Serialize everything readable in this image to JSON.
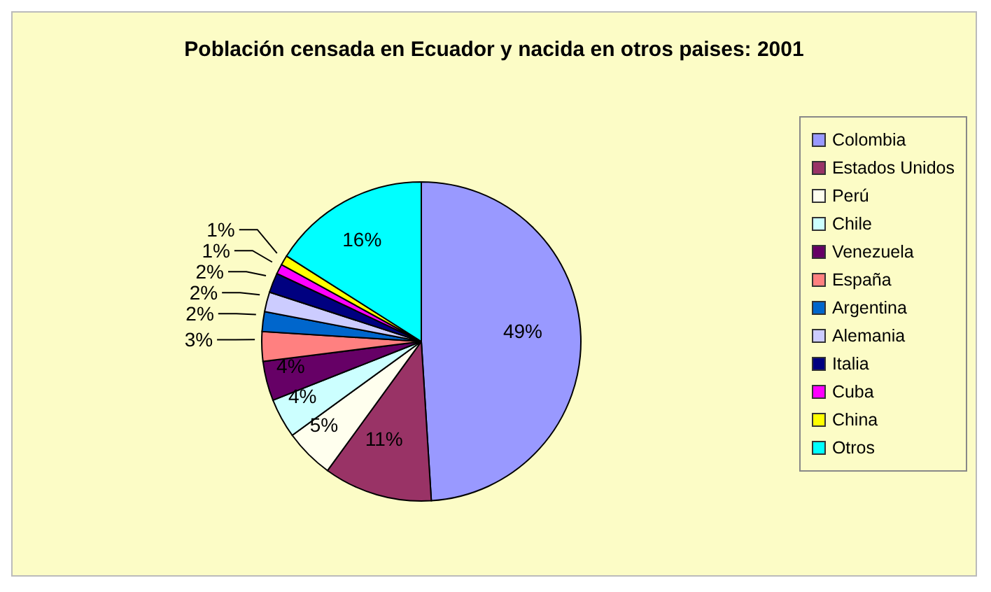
{
  "chart_data": {
    "type": "pie",
    "title": "Población censada en Ecuador y nacida en otros paises: 2001",
    "categories": [
      "Colombia",
      "Estados Unidos",
      "Perú",
      "Chile",
      "Venezuela",
      "España",
      "Argentina",
      "Alemania",
      "Italia",
      "Cuba",
      "China",
      "Otros"
    ],
    "values": [
      49,
      11,
      5,
      4,
      4,
      3,
      2,
      2,
      2,
      1,
      1,
      16
    ],
    "colors": [
      "#9999ff",
      "#993366",
      "#ffffee",
      "#ccffff",
      "#660066",
      "#ff8080",
      "#0066cc",
      "#ccccff",
      "#000080",
      "#ff00ff",
      "#ffff00",
      "#00ffff"
    ],
    "value_labels": [
      "49%",
      "11%",
      "5%",
      "4%",
      "4%",
      "3%",
      "2%",
      "2%",
      "2%",
      "1%",
      "1%",
      "16%"
    ],
    "legend": "right"
  }
}
